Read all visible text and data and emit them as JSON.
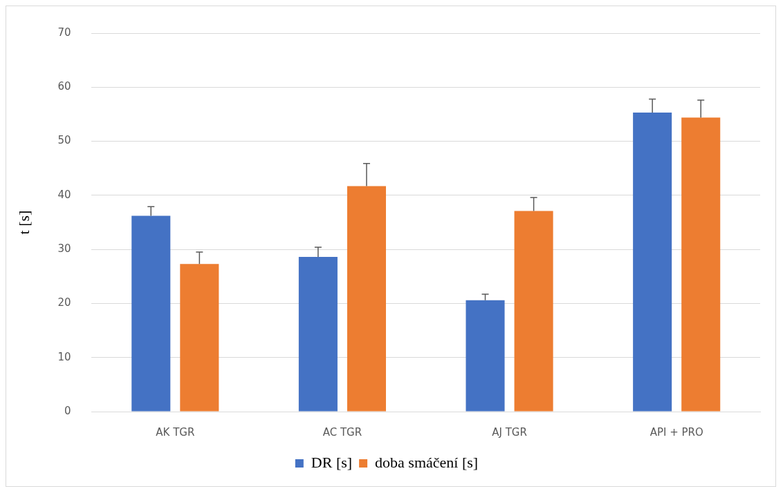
{
  "chart_data": {
    "type": "bar",
    "ylabel": "t [s]",
    "categories": [
      "AK TGR",
      "AC TGR",
      "AJ TGR",
      "API + PRO"
    ],
    "series": [
      {
        "name": "DR [s]",
        "color": "#4472c4",
        "values": [
          36.2,
          28.6,
          20.6,
          55.3
        ],
        "errors": [
          [
            36.2,
            37.9
          ],
          [
            28.6,
            30.4
          ],
          [
            20.6,
            21.7
          ],
          [
            55.3,
            57.8
          ]
        ]
      },
      {
        "name": "doba smáčení [s]",
        "color": "#ed7d31",
        "values": [
          27.3,
          41.7,
          37.1,
          54.4
        ],
        "errors": [
          [
            27.3,
            29.5
          ],
          [
            41.7,
            45.9
          ],
          [
            37.1,
            39.6
          ],
          [
            54.4,
            57.6
          ]
        ]
      }
    ],
    "ylim": [
      0,
      70
    ],
    "yticks": [
      0,
      10,
      20,
      30,
      40,
      50,
      60,
      70
    ],
    "grid": "y",
    "legend": "bottom"
  }
}
